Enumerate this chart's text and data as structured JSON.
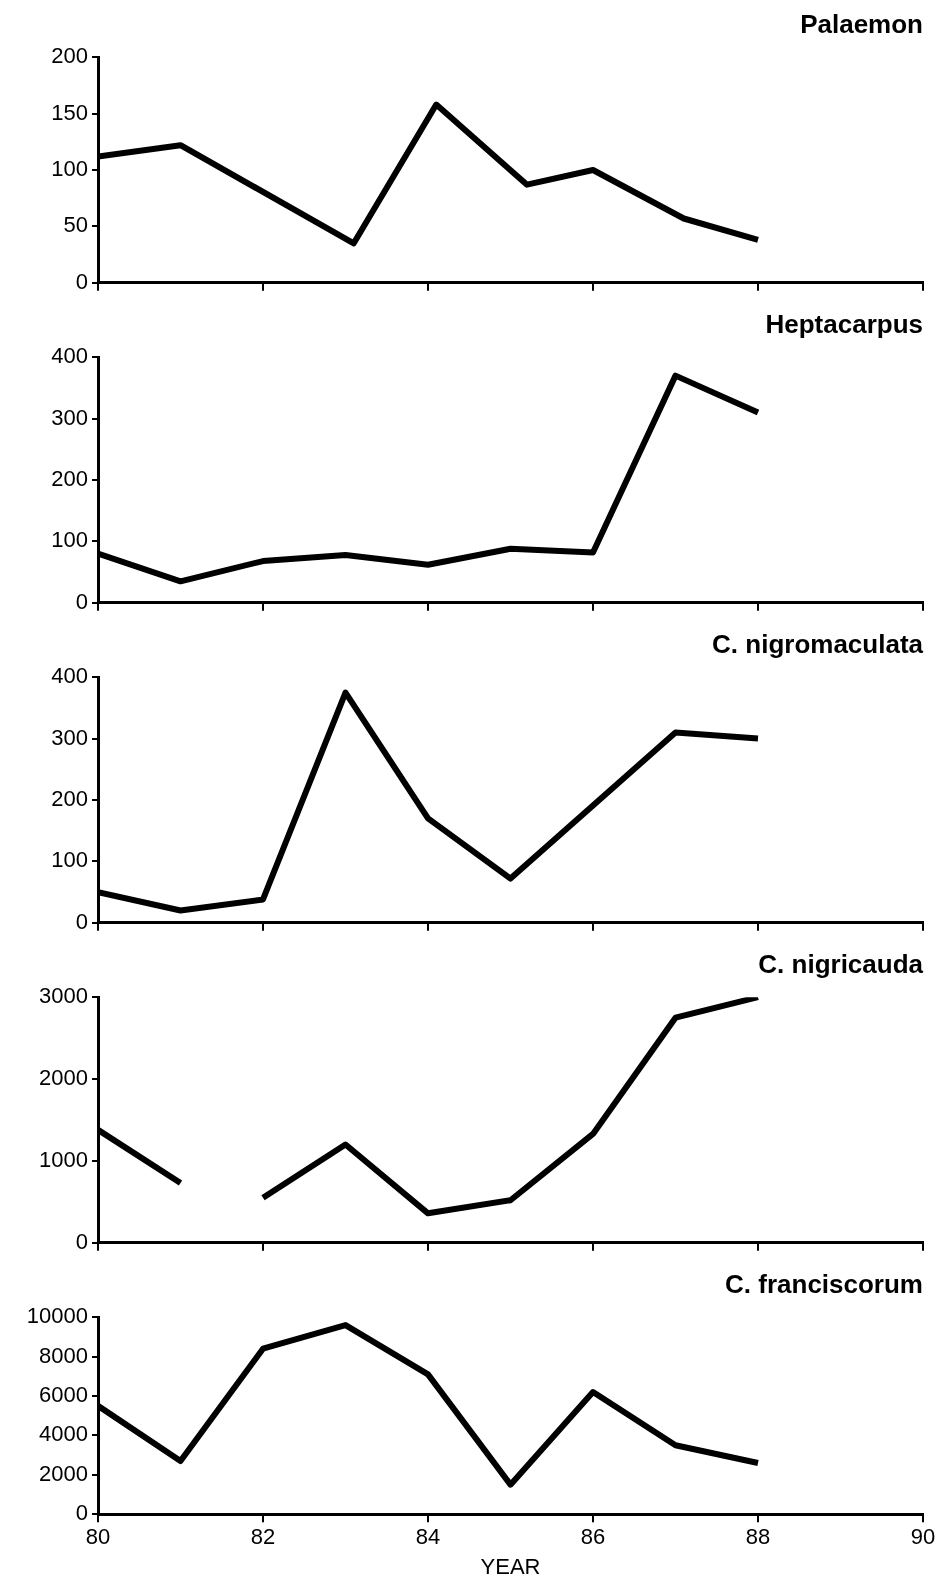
{
  "chart_data": [
    {
      "type": "line",
      "title": "Palaemon",
      "series": [
        {
          "color": "#000000",
          "x": [
            80,
            81,
            83.1,
            84.1,
            85.2,
            86,
            87.1,
            88
          ],
          "values": [
            112,
            122,
            35,
            158,
            87,
            100,
            57,
            38
          ]
        }
      ],
      "xlim": [
        80,
        90
      ],
      "xticks": [
        80,
        82,
        84,
        86,
        88,
        90
      ],
      "ylim": [
        0,
        200
      ],
      "yticks": [
        0,
        50,
        100,
        150,
        200
      ],
      "tick_labels": "y",
      "marker": "none",
      "grid": false
    },
    {
      "type": "line",
      "title": "Heptacarpus",
      "series": [
        {
          "color": "#000000",
          "x": [
            80,
            81,
            82,
            83,
            84,
            85,
            86,
            87,
            88
          ],
          "values": [
            80,
            35,
            68,
            78,
            62,
            88,
            82,
            370,
            310
          ]
        }
      ],
      "xlim": [
        80,
        90
      ],
      "xticks": [
        80,
        82,
        84,
        86,
        88,
        90
      ],
      "ylim": [
        0,
        400
      ],
      "yticks": [
        0,
        100,
        200,
        300,
        400
      ],
      "tick_labels": "y",
      "marker": "none",
      "grid": false
    },
    {
      "type": "line",
      "title": "C. nigromaculata",
      "series": [
        {
          "color": "#000000",
          "x": [
            80,
            81,
            82,
            83,
            84,
            85,
            87,
            88
          ],
          "values": [
            50,
            20,
            38,
            375,
            170,
            72,
            310,
            300
          ]
        }
      ],
      "xlim": [
        80,
        90
      ],
      "xticks": [
        80,
        82,
        84,
        86,
        88,
        90
      ],
      "ylim": [
        0,
        400
      ],
      "yticks": [
        0,
        100,
        200,
        300,
        400
      ],
      "tick_labels": "y",
      "marker": "none",
      "grid": false
    },
    {
      "type": "line",
      "title": "C. nigricauda",
      "series": [
        {
          "color": "#000000",
          "x": [
            80,
            81
          ],
          "values": [
            1380,
            730
          ]
        },
        {
          "color": "#000000",
          "x": [
            82,
            83,
            84,
            85,
            86,
            87,
            88
          ],
          "values": [
            550,
            1200,
            360,
            520,
            1330,
            2750,
            3000
          ]
        }
      ],
      "xlim": [
        80,
        90
      ],
      "xticks": [
        80,
        82,
        84,
        86,
        88,
        90
      ],
      "ylim": [
        0,
        3000
      ],
      "yticks": [
        0,
        1000,
        2000,
        3000
      ],
      "tick_labels": "y",
      "marker": "none",
      "grid": false
    },
    {
      "type": "line",
      "title": "C. franciscorum",
      "xlabel": "YEAR",
      "series": [
        {
          "color": "#000000",
          "x": [
            80,
            81,
            82,
            83,
            84,
            85,
            86,
            87,
            88
          ],
          "values": [
            5500,
            2700,
            8400,
            9600,
            7100,
            1500,
            6200,
            3500,
            2600
          ]
        }
      ],
      "xlim": [
        80,
        90
      ],
      "xticks": [
        80,
        82,
        84,
        86,
        88,
        90
      ],
      "ylim": [
        0,
        10000
      ],
      "yticks": [
        0,
        2000,
        4000,
        6000,
        8000,
        10000
      ],
      "marker": "none",
      "grid": false
    }
  ]
}
